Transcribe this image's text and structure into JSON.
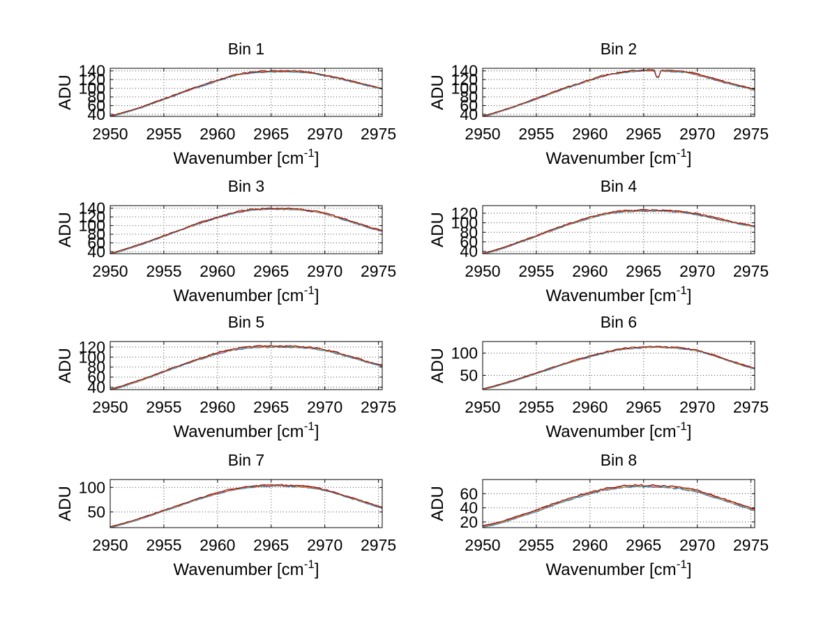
{
  "figure": {
    "background": "#ffffff"
  },
  "labels": {
    "ylabel": "ADU",
    "xlabel_pre": "Wavenumber [cm",
    "xlabel_sup": "-1",
    "xlabel_post": "]"
  },
  "chart_data": {
    "type": "line",
    "grid": "dotted",
    "xlim": [
      2950,
      2975.35
    ],
    "xticks": [
      2950,
      2955,
      2960,
      2965,
      2970,
      2975
    ],
    "x_anchors": [
      2950,
      2951,
      2952,
      2953,
      2954,
      2955,
      2956,
      2957,
      2958,
      2959,
      2960,
      2961,
      2962,
      2963,
      2964,
      2965,
      2966,
      2967,
      2968,
      2969,
      2970,
      2971,
      2972,
      2973,
      2974,
      2975
    ],
    "series_style": [
      {
        "name": "run-blue",
        "color": "#4a66b0",
        "offset": -2.6,
        "noise_scale": 0.7
      },
      {
        "name": "run-teal",
        "color": "#2fa3ad",
        "offset": -2.0,
        "noise_scale": 0.7
      },
      {
        "name": "run-orange",
        "color": "#e2912c",
        "offset": -1.2,
        "noise_scale": 0.9
      },
      {
        "name": "run-red",
        "color": "#cd2a1c",
        "offset": -0.5,
        "noise_scale": 1.0
      },
      {
        "name": "run-darkred",
        "color": "#7c1210",
        "offset": 0.0,
        "noise_scale": 1.0
      }
    ],
    "bins": [
      {
        "title": "Bin 1",
        "yticks": [
          40,
          60,
          80,
          100,
          120,
          140
        ],
        "ylim": [
          35,
          146
        ],
        "noise": 1.7,
        "values": [
          36,
          43,
          50,
          58,
          67,
          76,
          85,
          94,
          103,
          111,
          119,
          127,
          133,
          137,
          139,
          140,
          140,
          140,
          139,
          136,
          131,
          126,
          120,
          114,
          108,
          102
        ]
      },
      {
        "title": "Bin 2",
        "yticks": [
          40,
          60,
          80,
          100,
          120,
          140
        ],
        "ylim": [
          35,
          146
        ],
        "noise": 1.7,
        "spike": {
          "x": 2966.3,
          "depth": 22,
          "width": 0.3
        },
        "values": [
          36,
          43,
          51,
          59,
          68,
          77,
          86,
          95,
          104,
          112,
          120,
          128,
          134,
          138,
          141,
          142,
          142,
          141,
          140,
          138,
          133,
          126,
          119,
          112,
          106,
          100
        ]
      },
      {
        "title": "Bin 3",
        "yticks": [
          40,
          60,
          80,
          100,
          120,
          140
        ],
        "ylim": [
          35,
          146
        ],
        "noise": 1.7,
        "values": [
          36,
          43,
          51,
          59,
          68,
          77,
          86,
          95,
          104,
          112,
          120,
          127,
          133,
          137,
          139,
          140,
          140,
          139,
          137,
          134,
          129,
          122,
          114,
          106,
          98,
          91
        ]
      },
      {
        "title": "Bin 4",
        "yticks": [
          40,
          60,
          80,
          100,
          120
        ],
        "ylim": [
          35,
          136
        ],
        "noise": 1.6,
        "values": [
          36,
          42,
          49,
          57,
          65,
          73,
          82,
          90,
          98,
          105,
          112,
          118,
          122,
          125,
          126,
          127,
          127,
          126,
          125,
          123,
          119,
          114,
          109,
          104,
          99,
          95
        ]
      },
      {
        "title": "Bin 5",
        "yticks": [
          40,
          60,
          80,
          100,
          120
        ],
        "ylim": [
          35,
          131
        ],
        "noise": 1.6,
        "values": [
          36,
          42,
          49,
          56,
          64,
          72,
          80,
          88,
          95,
          102,
          109,
          114,
          118,
          121,
          122,
          122,
          122,
          122,
          121,
          119,
          115,
          110,
          104,
          98,
          91,
          86
        ]
      },
      {
        "title": "Bin 6",
        "yticks": [
          50,
          100
        ],
        "ylim": [
          18,
          126
        ],
        "noise": 1.5,
        "values": [
          20,
          26,
          33,
          40,
          48,
          56,
          64,
          72,
          80,
          87,
          94,
          100,
          106,
          110,
          113,
          114,
          115,
          114,
          113,
          111,
          107,
          100,
          92,
          84,
          76,
          69
        ]
      },
      {
        "title": "Bin 7",
        "yticks": [
          50,
          100
        ],
        "ylim": [
          18,
          116
        ],
        "noise": 1.5,
        "values": [
          20,
          26,
          32,
          39,
          46,
          54,
          61,
          69,
          76,
          83,
          89,
          95,
          99,
          102,
          104,
          105,
          105,
          104,
          103,
          100,
          96,
          90,
          83,
          76,
          69,
          62
        ]
      },
      {
        "title": "Bin 8",
        "yticks": [
          20,
          40,
          60
        ],
        "ylim": [
          12,
          80
        ],
        "noise": 1.4,
        "values": [
          15,
          18,
          22,
          27,
          32,
          37,
          43,
          48,
          53,
          58,
          62,
          66,
          69,
          71,
          72,
          72,
          72,
          71,
          70,
          68,
          65,
          60,
          55,
          50,
          45,
          40
        ]
      }
    ]
  }
}
